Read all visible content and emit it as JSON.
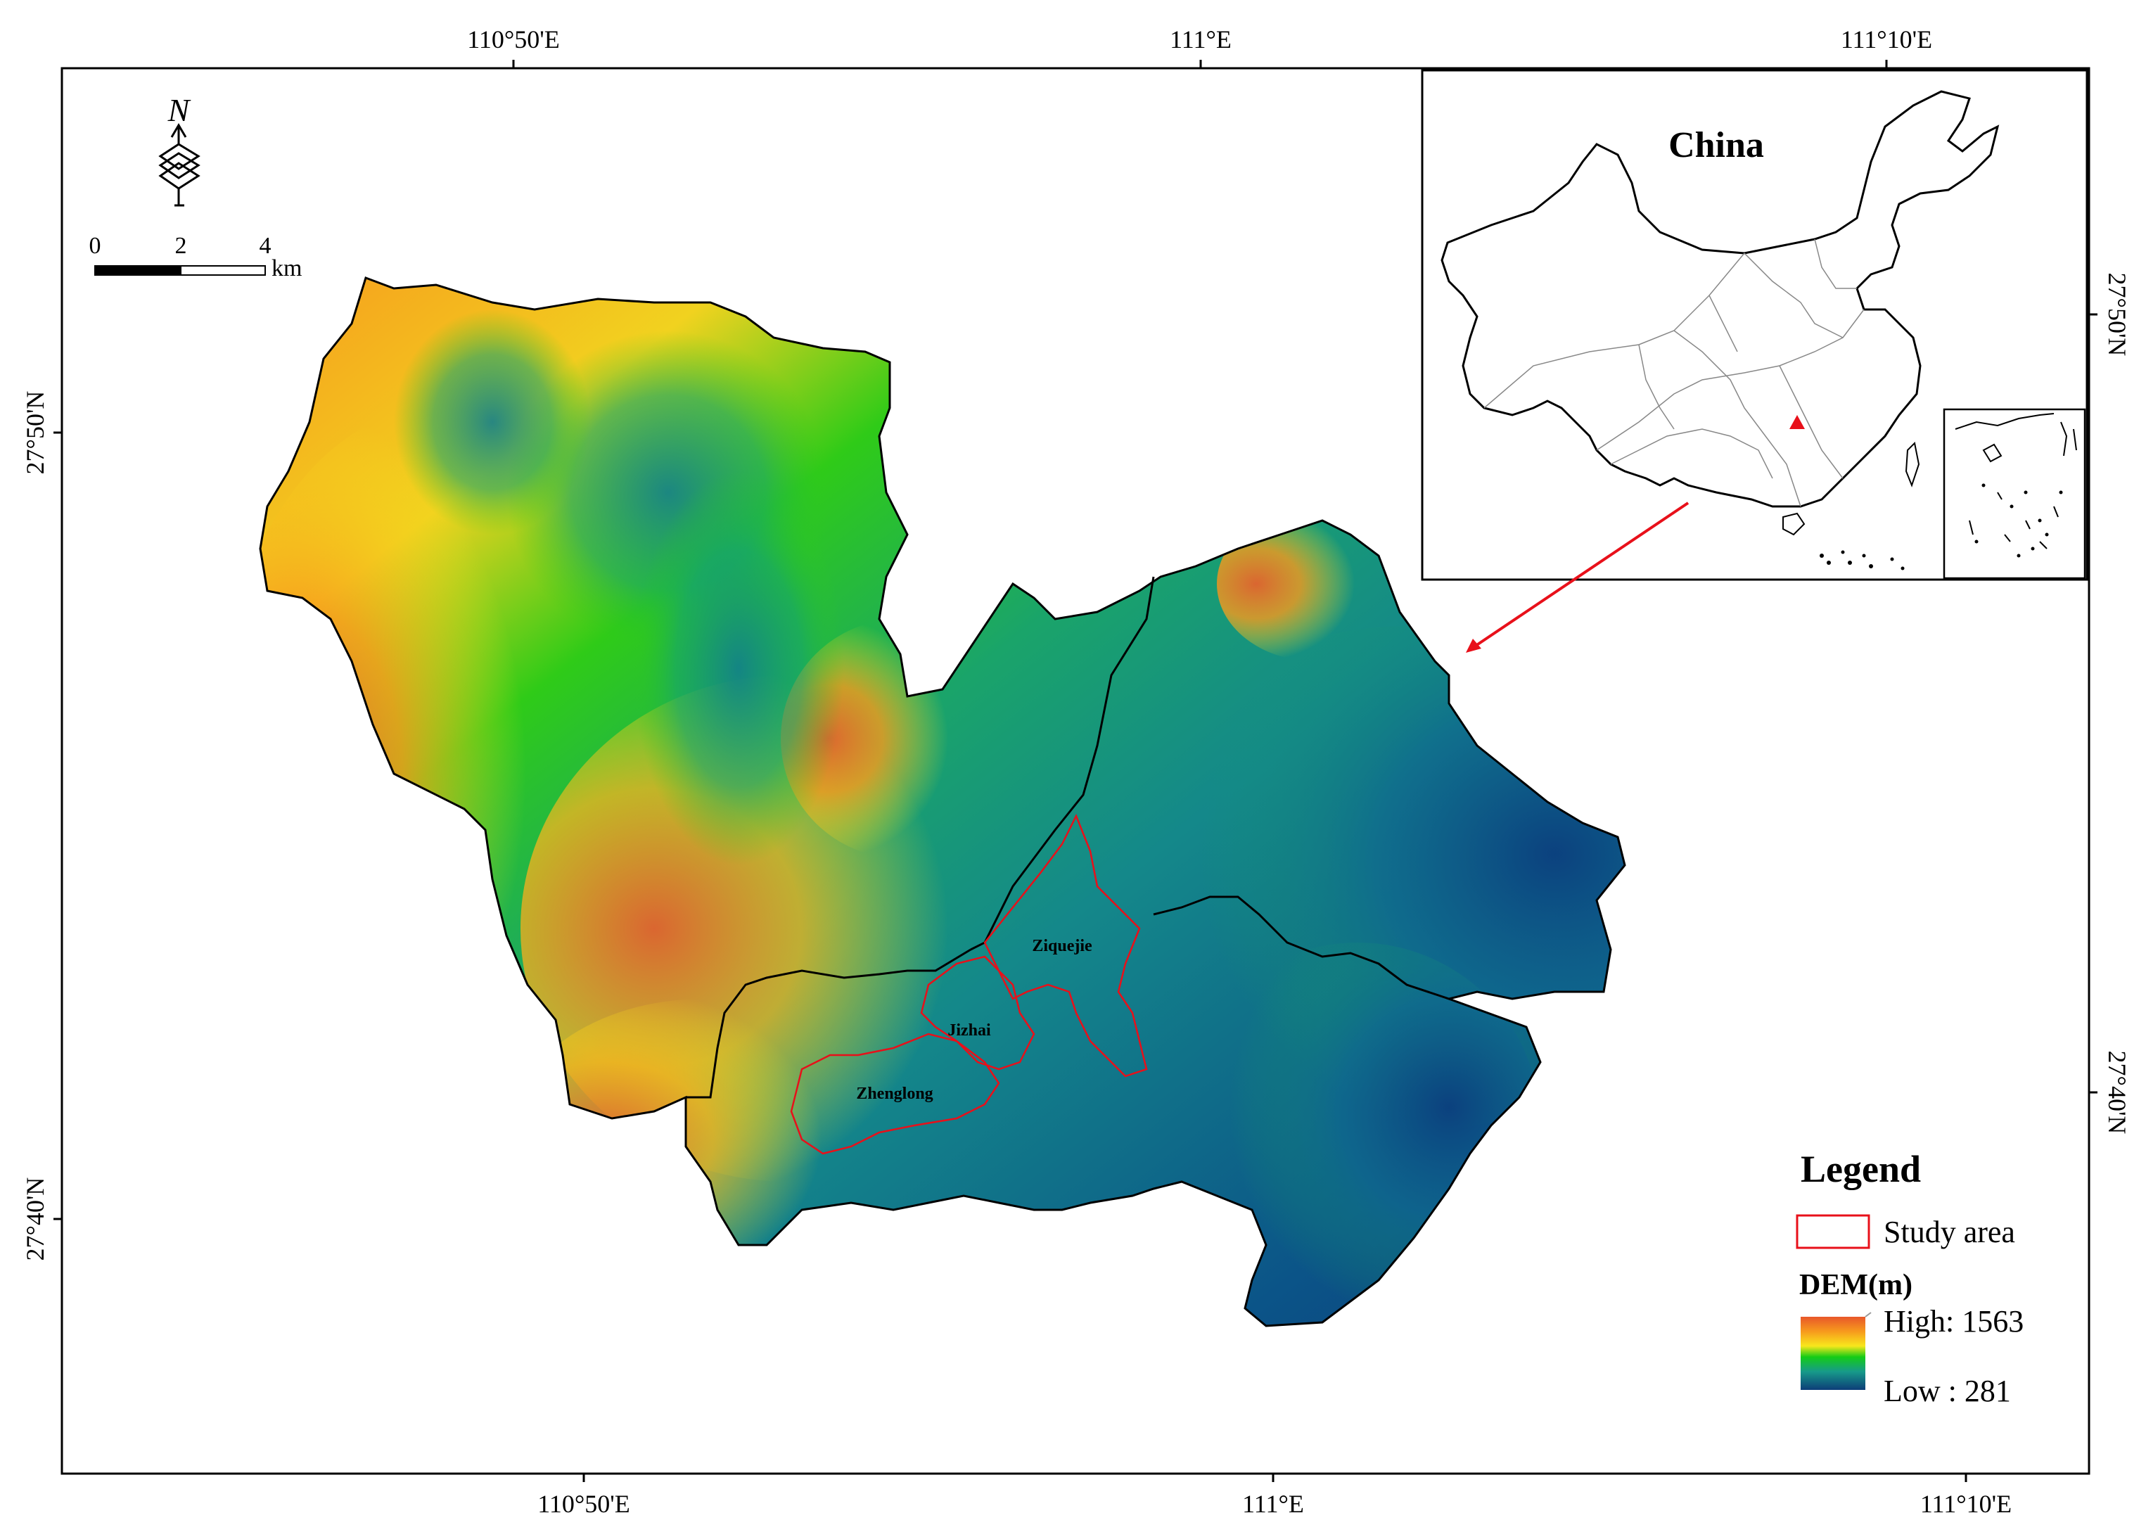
{
  "frame": {
    "top_labels": [
      "110°50'E",
      "111°E",
      "111°10'E"
    ],
    "bottom_labels": [
      "110°50'E",
      "111°E",
      "111°10'E"
    ],
    "left_labels": [
      "27°50'N",
      "27°40'N"
    ],
    "right_labels": [
      "27°50'N",
      "27°40'N"
    ]
  },
  "north_arrow": {
    "letter": "N"
  },
  "scale_bar": {
    "ticks": [
      "0",
      "2",
      "4"
    ],
    "unit": "km"
  },
  "inset": {
    "title": "China",
    "marker_color": "#e8101a"
  },
  "study_sites": [
    "Ziquejie",
    "Jizhai",
    "Zhenglong"
  ],
  "legend": {
    "title": "Legend",
    "study_area_label": "Study area",
    "study_area_color": "#e8101a",
    "dem_title": "DEM(m)",
    "high_label": "High: 1563",
    "low_label": "Low : 281",
    "ramp_colors": [
      "#e8572a",
      "#f79a1d",
      "#f8e71c",
      "#14cc16",
      "#179a8a",
      "#0d3d78"
    ]
  }
}
